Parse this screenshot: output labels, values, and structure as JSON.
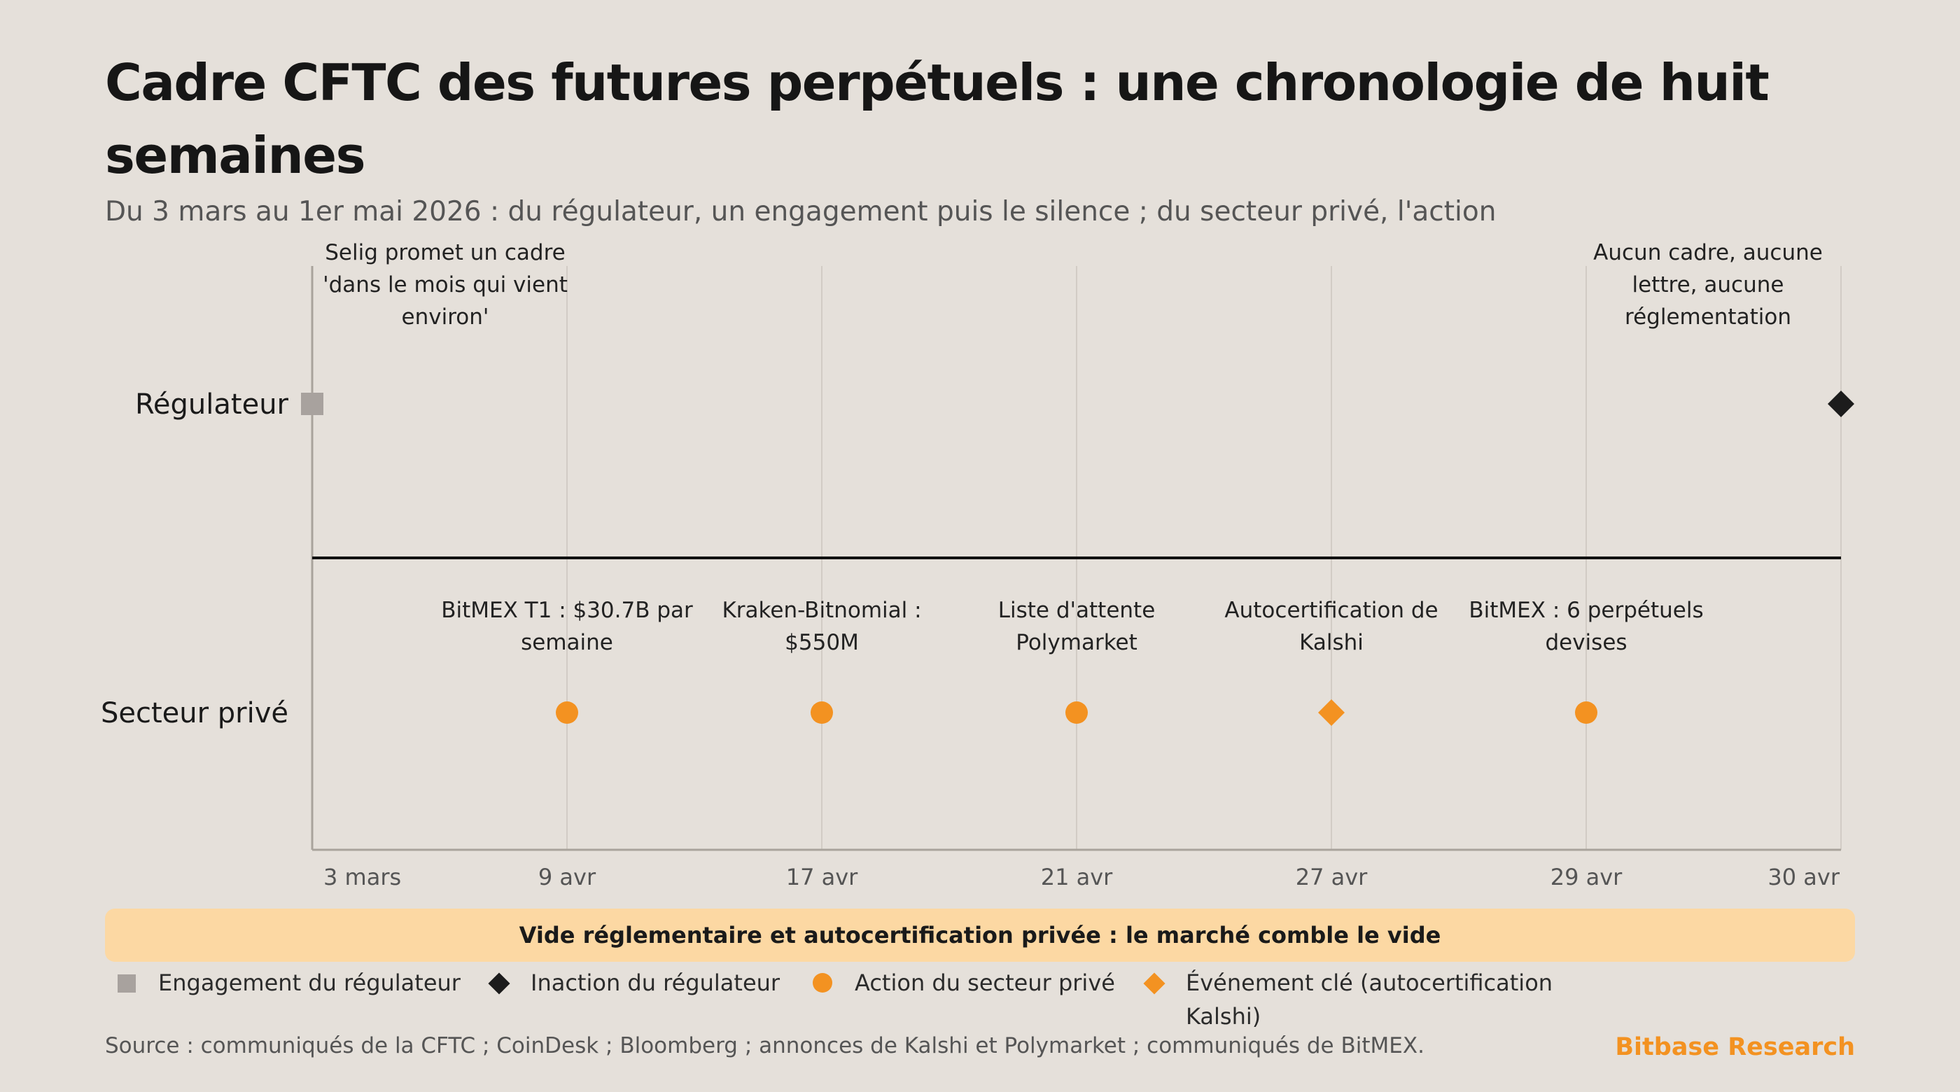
{
  "title": "Cadre CFTC des futures perpétuels : une chronologie de huit semaines",
  "subtitle": "Du 3 mars au 1er mai 2026 : du régulateur, un engagement puis le silence ; du secteur privé, l'action",
  "chart_data": {
    "type": "timeline",
    "rows": [
      "Régulateur",
      "Secteur privé"
    ],
    "dates": [
      "3 mars",
      "9 avr",
      "17 avr",
      "21 avr",
      "27 avr",
      "29 avr",
      "30 avr"
    ],
    "events": [
      {
        "date": "3 mars",
        "row": "Régulateur",
        "kind": "engagement",
        "label": "Selig promet un cadre 'dans le mois qui vient environ'",
        "label_lines": [
          "Selig promet un cadre",
          "'dans le mois qui vient",
          "environ'"
        ]
      },
      {
        "date": "30 avr",
        "row": "Régulateur",
        "kind": "inaction",
        "label": "Aucun cadre, aucune lettre, aucune réglementation",
        "label_lines": [
          "Aucun cadre, aucune",
          "lettre, aucune",
          "réglementation"
        ]
      },
      {
        "date": "9 avr",
        "row": "Secteur privé",
        "kind": "action",
        "label": "BitMEX T1 : $30.7B par semaine",
        "label_lines": [
          "BitMEX T1 : $30.7B par",
          "semaine"
        ]
      },
      {
        "date": "17 avr",
        "row": "Secteur privé",
        "kind": "action",
        "label": "Kraken-Bitnomial : $550M",
        "label_lines": [
          "Kraken-Bitnomial :",
          "$550M"
        ]
      },
      {
        "date": "21 avr",
        "row": "Secteur privé",
        "kind": "action",
        "label": "Liste d'attente Polymarket",
        "label_lines": [
          "Liste d'attente",
          "Polymarket"
        ]
      },
      {
        "date": "27 avr",
        "row": "Secteur privé",
        "kind": "key",
        "label": "Autocertification de Kalshi",
        "label_lines": [
          "Autocertification de",
          "Kalshi"
        ]
      },
      {
        "date": "29 avr",
        "row": "Secteur privé",
        "kind": "action",
        "label": "BitMEX : 6 perpétuels devises",
        "label_lines": [
          "BitMEX : 6 perpétuels",
          "devises"
        ]
      }
    ],
    "colors": {
      "engagement": "#a8a29e",
      "inaction": "#1c1c1c",
      "action": "#f39221",
      "key": "#f39221"
    }
  },
  "banner": "Vide réglementaire et autocertification privée : le marché comble le vide",
  "legend": {
    "engagement": "Engagement du régulateur",
    "inaction": "Inaction du régulateur",
    "action": "Action du secteur privé",
    "key": "Événement clé (autocertification Kalshi)"
  },
  "source": "Source : communiqués de la CFTC ; CoinDesk ; Bloomberg ; annonces de Kalshi et Polymarket ; communiqués de BitMEX.",
  "brand": "Bitbase Research"
}
